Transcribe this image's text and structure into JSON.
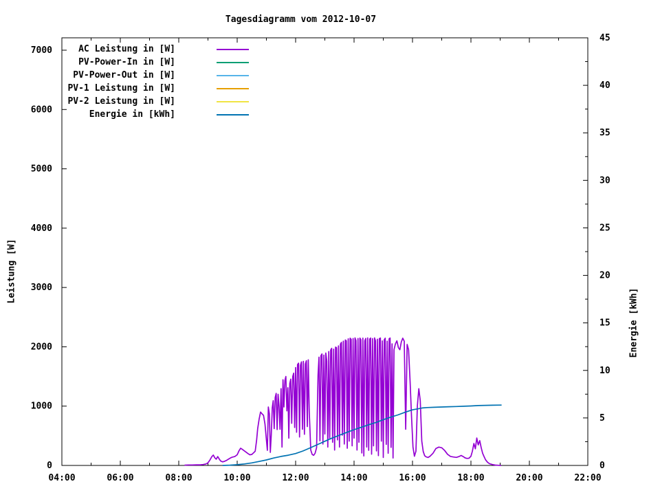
{
  "chart_data": {
    "type": "line",
    "title": "Tagesdiagramm vom 2012-10-07",
    "background_color": "#ffffff",
    "border_color": "#000000",
    "grid": false,
    "legend_position": "top-left-inside",
    "x": {
      "min": "04:00",
      "max": "22:00",
      "major_ticks": [
        "04:00",
        "06:00",
        "08:00",
        "10:00",
        "12:00",
        "14:00",
        "16:00",
        "18:00",
        "20:00",
        "22:00"
      ],
      "minor_tick_interval_minutes": 60
    },
    "y_left": {
      "label": "Leistung [W]",
      "min": 0,
      "max": 7208,
      "ticks": [
        0,
        1000,
        2000,
        3000,
        4000,
        5000,
        6000,
        7000
      ]
    },
    "y_right": {
      "label": "Energie [kWh]",
      "min": 0,
      "max": 45,
      "ticks": [
        0,
        5,
        10,
        15,
        20,
        25,
        30,
        35,
        40,
        45
      ],
      "minor_tick_step": 2.5
    },
    "series": [
      {
        "name": "AC Leistung in [W]",
        "slug": "ac-leistung",
        "color": "#9400d3",
        "axis": "left",
        "visible_in_plot": true,
        "x": [
          "08:12",
          "08:20",
          "08:28",
          "08:36",
          "08:44",
          "08:50",
          "08:56",
          "09:00",
          "09:04",
          "09:08",
          "09:11",
          "09:14",
          "09:17",
          "09:20",
          "09:23",
          "09:26",
          "09:30",
          "09:34",
          "09:38",
          "09:42",
          "09:46",
          "09:50",
          "09:55",
          "10:00",
          "10:04",
          "10:07",
          "10:10",
          "10:14",
          "10:18",
          "10:22",
          "10:26",
          "10:30",
          "10:34",
          "10:37",
          "10:40",
          "10:42",
          "10:45",
          "10:48",
          "10:51",
          "10:54",
          "10:57",
          "11:00",
          "11:02",
          "11:04",
          "11:06",
          "11:08",
          "11:10",
          "11:12",
          "11:14",
          "11:16",
          "11:18",
          "11:20",
          "11:22",
          "11:24",
          "11:26",
          "11:28",
          "11:30",
          "11:32",
          "11:34",
          "11:36",
          "11:38",
          "11:40",
          "11:42",
          "11:44",
          "11:46",
          "11:48",
          "11:50",
          "11:52",
          "11:54",
          "11:56",
          "11:58",
          "12:00",
          "12:02",
          "12:04",
          "12:06",
          "12:08",
          "12:10",
          "12:12",
          "12:14",
          "12:16",
          "12:18",
          "12:20",
          "12:22",
          "12:24",
          "12:26",
          "12:28",
          "12:31",
          "12:34",
          "12:37",
          "12:40",
          "12:43",
          "12:46",
          "12:48",
          "12:50",
          "12:52",
          "12:54",
          "12:56",
          "12:58",
          "13:00",
          "13:02",
          "13:04",
          "13:06",
          "13:08",
          "13:10",
          "13:12",
          "13:14",
          "13:16",
          "13:18",
          "13:20",
          "13:22",
          "13:24",
          "13:26",
          "13:28",
          "13:30",
          "13:32",
          "13:34",
          "13:36",
          "13:38",
          "13:40",
          "13:42",
          "13:44",
          "13:46",
          "13:48",
          "13:50",
          "13:52",
          "13:54",
          "13:56",
          "13:58",
          "14:00",
          "14:02",
          "14:04",
          "14:06",
          "14:08",
          "14:10",
          "14:12",
          "14:14",
          "14:16",
          "14:18",
          "14:20",
          "14:22",
          "14:24",
          "14:26",
          "14:28",
          "14:30",
          "14:32",
          "14:34",
          "14:36",
          "14:38",
          "14:40",
          "14:42",
          "14:44",
          "14:46",
          "14:48",
          "14:50",
          "14:52",
          "14:54",
          "14:56",
          "14:58",
          "15:00",
          "15:02",
          "15:04",
          "15:06",
          "15:08",
          "15:10",
          "15:12",
          "15:14",
          "15:16",
          "15:18",
          "15:20",
          "15:22",
          "15:25",
          "15:28",
          "15:31",
          "15:34",
          "15:37",
          "15:40",
          "15:43",
          "15:46",
          "15:49",
          "15:52",
          "15:55",
          "15:58",
          "16:01",
          "16:04",
          "16:07",
          "16:10",
          "16:13",
          "16:16",
          "16:19",
          "16:22",
          "16:25",
          "16:28",
          "16:32",
          "16:36",
          "16:42",
          "16:48",
          "16:54",
          "17:00",
          "17:06",
          "17:12",
          "17:18",
          "17:24",
          "17:30",
          "17:36",
          "17:40",
          "17:44",
          "17:48",
          "17:52",
          "17:56",
          "18:00",
          "18:03",
          "18:06",
          "18:09",
          "18:12",
          "18:15",
          "18:18",
          "18:21",
          "18:24",
          "18:27",
          "18:30",
          "18:34",
          "18:38",
          "18:44",
          "18:50",
          "18:57",
          "19:02"
        ],
        "y": [
          5,
          8,
          8,
          10,
          10,
          15,
          25,
          45,
          90,
          150,
          175,
          130,
          105,
          150,
          110,
          75,
          60,
          70,
          85,
          105,
          125,
          140,
          150,
          180,
          250,
          290,
          275,
          250,
          225,
          200,
          180,
          185,
          215,
          240,
          430,
          620,
          780,
          900,
          870,
          845,
          700,
          430,
          255,
          985,
          870,
          220,
          520,
          970,
          1090,
          620,
          1145,
          1215,
          605,
          1200,
          990,
          610,
          1295,
          310,
          1445,
          985,
          1430,
          1500,
          920,
          1310,
          460,
          1380,
          1455,
          710,
          1500,
          1555,
          640,
          1650,
          560,
          1700,
          1725,
          480,
          1690,
          1745,
          610,
          1755,
          525,
          1710,
          1765,
          655,
          1780,
          920,
          260,
          185,
          170,
          205,
          300,
          1520,
          1825,
          415,
          1850,
          1880,
          360,
          1860,
          530,
          1895,
          1760,
          310,
          1920,
          460,
          1945,
          1975,
          390,
          1960,
          260,
          1995,
          1985,
          430,
          2015,
          310,
          2045,
          2075,
          510,
          2095,
          360,
          2115,
          2100,
          290,
          2135,
          410,
          2145,
          2125,
          330,
          2140,
          460,
          2150,
          2105,
          260,
          2140,
          390,
          2148,
          2120,
          210,
          2145,
          160,
          2100,
          2140,
          310,
          2150,
          255,
          2130,
          2148,
          190,
          2138,
          330,
          2150,
          2100,
          245,
          2128,
          165,
          2138,
          2148,
          410,
          2100,
          135,
          2118,
          2145,
          355,
          2095,
          205,
          2135,
          2148,
          305,
          2050,
          125,
          1950,
          2050,
          2100,
          1985,
          1950,
          2080,
          2145,
          2095,
          610,
          2040,
          1950,
          1420,
          820,
          310,
          155,
          240,
          1010,
          1295,
          1090,
          410,
          235,
          165,
          145,
          135,
          155,
          205,
          285,
          310,
          298,
          252,
          188,
          152,
          142,
          136,
          152,
          168,
          150,
          128,
          118,
          122,
          155,
          240,
          370,
          280,
          462,
          345,
          418,
          300,
          205,
          150,
          95,
          55,
          30,
          15,
          6,
          2,
          0
        ]
      },
      {
        "name": "PV-Power-In in [W]",
        "slug": "pv-power-in",
        "color": "#009e73",
        "axis": "left",
        "visible_in_plot": false,
        "x": [],
        "y": []
      },
      {
        "name": "PV-Power-Out in [W]",
        "slug": "pv-power-out",
        "color": "#56b4e9",
        "axis": "left",
        "visible_in_plot": false,
        "x": [],
        "y": []
      },
      {
        "name": "PV-1 Leistung in [W]",
        "slug": "pv-1-leistung",
        "color": "#e69f00",
        "axis": "left",
        "visible_in_plot": false,
        "x": [],
        "y": []
      },
      {
        "name": "PV-2 Leistung in [W]",
        "slug": "pv-2-leistung",
        "color": "#f0e442",
        "axis": "left",
        "visible_in_plot": false,
        "x": [],
        "y": []
      },
      {
        "name": "Energie in [kWh]",
        "slug": "energie",
        "color": "#0072b2",
        "axis": "right",
        "visible_in_plot": true,
        "x": [
          "09:30",
          "09:45",
          "10:00",
          "10:15",
          "10:30",
          "10:45",
          "11:00",
          "11:15",
          "11:30",
          "11:45",
          "12:00",
          "12:15",
          "12:30",
          "12:45",
          "13:00",
          "13:15",
          "13:30",
          "13:45",
          "14:00",
          "14:15",
          "14:30",
          "14:45",
          "15:00",
          "15:15",
          "15:30",
          "15:45",
          "16:00",
          "16:10",
          "16:20",
          "16:30",
          "16:45",
          "17:00",
          "17:15",
          "17:30",
          "17:45",
          "18:00",
          "18:15",
          "18:30",
          "18:45",
          "19:03"
        ],
        "y": [
          0,
          0.03,
          0.08,
          0.16,
          0.27,
          0.42,
          0.58,
          0.78,
          0.95,
          1.08,
          1.25,
          1.52,
          1.85,
          2.2,
          2.55,
          2.88,
          3.18,
          3.48,
          3.76,
          4.02,
          4.28,
          4.52,
          4.82,
          5.08,
          5.32,
          5.6,
          5.85,
          5.95,
          6.05,
          6.09,
          6.12,
          6.15,
          6.18,
          6.2,
          6.23,
          6.26,
          6.3,
          6.32,
          6.34,
          6.35
        ]
      }
    ]
  }
}
